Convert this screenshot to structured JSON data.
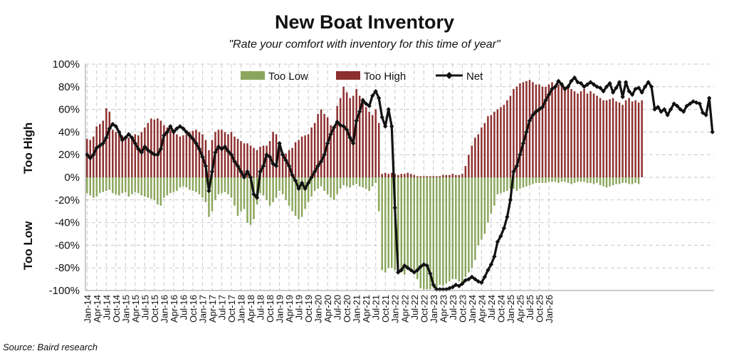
{
  "title": "New Boat Inventory",
  "subtitle": "\"Rate your comfort with inventory for this time of year\"",
  "source": "Source: Baird research",
  "colors": {
    "too_low": "#8aa65c",
    "too_high": "#8e2f2f",
    "net": "#111111",
    "grid": "#c8c8c8"
  },
  "chart_data": {
    "type": "bar",
    "title": "New Boat Inventory",
    "subtitle": "\"Rate your comfort with inventory for this time of year\"",
    "ylim": [
      -100,
      100
    ],
    "yticks": [
      "100%",
      "80%",
      "60%",
      "40%",
      "20%",
      "0%",
      "-20%",
      "-40%",
      "-60%",
      "-80%",
      "-100%"
    ],
    "ylabel_top": "Too High",
    "ylabel_bottom": "Too Low",
    "legend_position": "top-center",
    "grid": true,
    "xticks": [
      "Jan-14",
      "Apr-14",
      "Jul-14",
      "Oct-14",
      "Jan-15",
      "Apr-15",
      "Jul-15",
      "Oct-15",
      "Jan-16",
      "Apr-16",
      "Jul-16",
      "Oct-16",
      "Jan-17",
      "Apr-17",
      "Jul-17",
      "Oct-17",
      "Jan-18",
      "Apr-18",
      "Jul-18",
      "Oct-18",
      "Jan-19",
      "Apr-19",
      "Jul-19",
      "Oct-19",
      "Jan-20",
      "Apr-20",
      "Jul-20",
      "Oct-20",
      "Jan-21",
      "Apr-21",
      "Jul-21",
      "Oct-21",
      "Jan-22",
      "Apr-22",
      "Jul-22",
      "Oct-22",
      "Jan-23",
      "Apr-23",
      "Jul-23",
      "Oct-23",
      "Jan-24",
      "Apr-24",
      "Jul-24",
      "Oct-24",
      "Jan-25",
      "Apr-25",
      "Jul-25",
      "Oct-25",
      "Jan-26"
    ],
    "start_month": "Jan-14",
    "series": [
      {
        "name": "Too Low",
        "values": [
          -14,
          -16,
          -18,
          -17,
          -14,
          -13,
          -12,
          -11,
          -14,
          -15,
          -16,
          -14,
          -13,
          -17,
          -15,
          -13,
          -14,
          -16,
          -17,
          -18,
          -19,
          -20,
          -24,
          -25,
          -18,
          -16,
          -14,
          -13,
          -12,
          -9,
          -8,
          -9,
          -11,
          -12,
          -13,
          -15,
          -18,
          -22,
          -35,
          -30,
          -20,
          -15,
          -14,
          -13,
          -15,
          -18,
          -25,
          -34,
          -30,
          -28,
          -40,
          -42,
          -37,
          -24,
          -14,
          -16,
          -20,
          -25,
          -22,
          -18,
          -12,
          -15,
          -20,
          -25,
          -30,
          -34,
          -37,
          -35,
          -28,
          -22,
          -17,
          -12,
          -10,
          -8,
          -12,
          -15,
          -18,
          -20,
          -15,
          -10,
          -7,
          -8,
          -9,
          -7,
          -6,
          -8,
          -9,
          -10,
          -12,
          -8,
          -5,
          -30,
          -82,
          -84,
          -80,
          -80,
          -82,
          -84,
          -84,
          -86,
          -82,
          -80,
          -82,
          -90,
          -98,
          -99,
          -99,
          -99,
          -98,
          -97,
          -95,
          -96,
          -94,
          -92,
          -90,
          -90,
          -92,
          -93,
          -88,
          -84,
          -80,
          -73,
          -60,
          -55,
          -50,
          -40,
          -32,
          -25,
          -15,
          -14,
          -13,
          -12,
          -10,
          -10,
          -12,
          -10,
          -9,
          -8,
          -7,
          -6,
          -5,
          -5,
          -5,
          -5,
          -4,
          -4,
          -4,
          -5,
          -4,
          -4,
          -5,
          -6,
          -5,
          -4,
          -4,
          -4,
          -5,
          -5,
          -6,
          -5,
          -7,
          -8,
          -9,
          -8,
          -7,
          -6,
          -6,
          -5,
          -5,
          -6,
          -6,
          -5,
          -6
        ]
      },
      {
        "name": "Too High",
        "values": [
          34,
          33,
          36,
          45,
          47,
          50,
          61,
          58,
          42,
          40,
          39,
          37,
          36,
          35,
          35,
          38,
          37,
          40,
          44,
          48,
          52,
          51,
          52,
          50,
          46,
          44,
          42,
          40,
          38,
          36,
          37,
          38,
          40,
          41,
          42,
          40,
          38,
          33,
          24,
          33,
          40,
          42,
          42,
          40,
          38,
          40,
          36,
          34,
          32,
          30,
          30,
          28,
          26,
          24,
          27,
          28,
          28,
          32,
          40,
          38,
          26,
          22,
          21,
          24,
          26,
          31,
          33,
          36,
          37,
          38,
          44,
          48,
          56,
          60,
          56,
          53,
          46,
          44,
          63,
          70,
          80,
          75,
          70,
          72,
          78,
          72,
          70,
          62,
          58,
          55,
          60,
          48,
          3,
          4,
          3,
          4,
          3,
          2,
          3,
          3,
          4,
          3,
          2,
          1,
          1,
          1,
          1,
          1,
          1,
          1,
          1,
          2,
          2,
          2,
          3,
          2,
          2,
          3,
          10,
          20,
          28,
          35,
          38,
          44,
          48,
          54,
          55,
          58,
          60,
          62,
          64,
          68,
          72,
          78,
          80,
          83,
          84,
          85,
          86,
          84,
          82,
          82,
          80,
          80,
          82,
          84,
          80,
          82,
          84,
          80,
          82,
          78,
          76,
          74,
          76,
          78,
          74,
          76,
          74,
          72,
          70,
          68,
          68,
          69,
          70,
          67,
          66,
          64,
          68,
          70,
          67,
          68,
          66,
          68
        ]
      },
      {
        "name": "Net",
        "values": [
          20,
          17,
          20,
          26,
          28,
          30,
          35,
          43,
          47,
          45,
          40,
          33,
          35,
          38,
          35,
          30,
          25,
          22,
          27,
          24,
          22,
          20,
          20,
          25,
          37,
          40,
          45,
          40,
          43,
          45,
          43,
          40,
          37,
          34,
          30,
          25,
          18,
          10,
          -12,
          5,
          22,
          27,
          25,
          27,
          23,
          20,
          14,
          10,
          5,
          0,
          5,
          0,
          -15,
          -18,
          5,
          10,
          20,
          18,
          12,
          10,
          30,
          20,
          15,
          10,
          2,
          -3,
          -10,
          -5,
          -10,
          -5,
          0,
          5,
          10,
          14,
          20,
          30,
          38,
          44,
          49,
          46,
          45,
          42,
          35,
          30,
          50,
          58,
          68,
          65,
          63,
          72,
          76,
          70,
          53,
          45,
          60,
          45,
          -27,
          -84,
          -82,
          -78,
          -80,
          -82,
          -84,
          -82,
          -79,
          -77,
          -78,
          -85,
          -95,
          -99,
          -99,
          -99,
          -99,
          -98,
          -97,
          -95,
          -96,
          -94,
          -91,
          -90,
          -88,
          -90,
          -92,
          -93,
          -88,
          -82,
          -77,
          -70,
          -57,
          -52,
          -45,
          -35,
          -20,
          5,
          10,
          20,
          30,
          40,
          50,
          55,
          58,
          60,
          62,
          68,
          73,
          78,
          80,
          85,
          82,
          78,
          80,
          85,
          88,
          84,
          83,
          80,
          82,
          84,
          82,
          80,
          79,
          76,
          80,
          83,
          75,
          79,
          84,
          71,
          84,
          76,
          73,
          78,
          79,
          75,
          80,
          84,
          80,
          60,
          62,
          58,
          60,
          55,
          60,
          65,
          63,
          60,
          58,
          63,
          65,
          67,
          66,
          65,
          57,
          55,
          70,
          40
        ]
      }
    ]
  }
}
